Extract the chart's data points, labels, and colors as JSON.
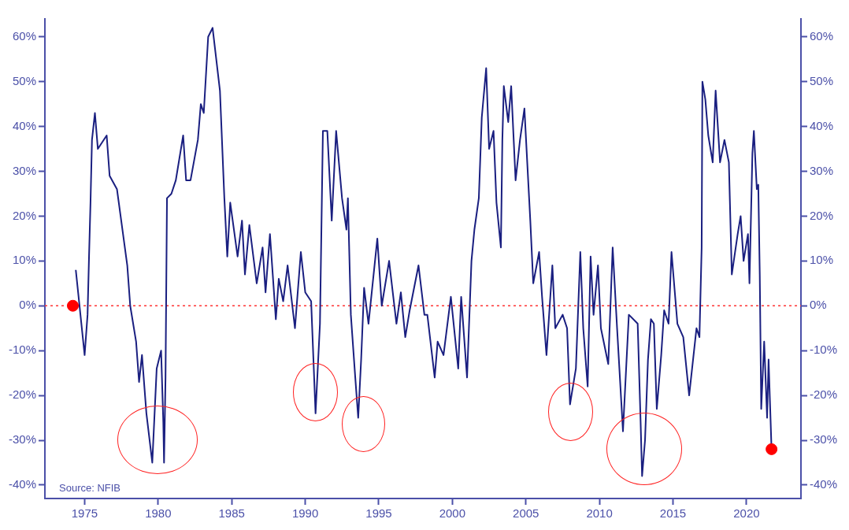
{
  "chart_data": {
    "type": "line",
    "xlim": [
      1972.3,
      2023.7
    ],
    "xticks": [
      1975,
      1980,
      1985,
      1990,
      1995,
      2000,
      2005,
      2010,
      2015,
      2020
    ],
    "ylim": [
      -43,
      64
    ],
    "yticks": [
      {
        "value": -40,
        "label": "-40%"
      },
      {
        "value": -30,
        "label": "-30%"
      },
      {
        "value": -20,
        "label": "-20%"
      },
      {
        "value": -10,
        "label": "-10%"
      },
      {
        "value": 0,
        "label": "0%"
      },
      {
        "value": 10,
        "label": "10%"
      },
      {
        "value": 20,
        "label": "20%"
      },
      {
        "value": 30,
        "label": "30%"
      },
      {
        "value": 40,
        "label": "40%"
      },
      {
        "value": 50,
        "label": "50%"
      },
      {
        "value": 60,
        "label": "60%"
      }
    ],
    "y2lim": [
      -43,
      64
    ],
    "y2ticks": [
      {
        "value": -40,
        "label": "-40%"
      },
      {
        "value": -30,
        "label": "-30%"
      },
      {
        "value": -20,
        "label": "-20%"
      },
      {
        "value": -10,
        "label": "-10%"
      },
      {
        "value": 0,
        "label": "0%"
      },
      {
        "value": 10,
        "label": "10%"
      },
      {
        "value": 20,
        "label": "20%"
      },
      {
        "value": 30,
        "label": "30%"
      },
      {
        "value": 40,
        "label": "40%"
      },
      {
        "value": 50,
        "label": "50%"
      },
      {
        "value": 60,
        "label": "60%"
      }
    ],
    "grid": false,
    "legend": false,
    "line_style": "solid",
    "ref_lines": [
      {
        "axis": "y",
        "value": 0,
        "color": "#ff3333",
        "line_style": "dotted"
      }
    ],
    "annotations": [
      "Source: NFIB"
    ],
    "series": [
      {
        "type": "line",
        "color": "#1a1f80",
        "x": [
          1974.4,
          1975.0,
          1975.2,
          1975.3,
          1975.4,
          1975.5,
          1975.7,
          1975.9,
          1976.5,
          1976.7,
          1977.2,
          1977.9,
          1978.1,
          1978.5,
          1978.7,
          1978.9,
          1979.2,
          1979.6,
          1979.9,
          1980.2,
          1980.35,
          1980.4,
          1980.5,
          1980.6,
          1980.9,
          1981.2,
          1981.7,
          1981.9,
          1982.2,
          1982.7,
          1982.9,
          1983.1,
          1983.4,
          1983.7,
          1984.2,
          1984.5,
          1984.7,
          1984.9,
          1985.4,
          1985.7,
          1985.9,
          1986.2,
          1986.7,
          1987.1,
          1987.3,
          1987.6,
          1988.0,
          1988.2,
          1988.5,
          1988.8,
          1989.3,
          1989.7,
          1990.0,
          1990.4,
          1990.7,
          1991.0,
          1991.2,
          1991.5,
          1991.8,
          1992.1,
          1992.5,
          1992.8,
          1992.9,
          1993.1,
          1993.4,
          1993.6,
          1993.8,
          1994.0,
          1994.3,
          1994.9,
          1995.2,
          1995.7,
          1996.2,
          1996.5,
          1996.8,
          1997.1,
          1997.7,
          1998.1,
          1998.3,
          1998.8,
          1999.0,
          1999.4,
          1999.9,
          2000.4,
          2000.6,
          2001.0,
          2001.3,
          2001.5,
          2001.8,
          2002.0,
          2002.3,
          2002.5,
          2002.8,
          2003.0,
          2003.3,
          2003.4,
          2003.5,
          2003.8,
          2004.0,
          2004.3,
          2004.6,
          2004.9,
          2005.3,
          2005.5,
          2005.9,
          2006.1,
          2006.4,
          2006.8,
          2007.0,
          2007.5,
          2007.8,
          2008.0,
          2008.4,
          2008.7,
          2008.9,
          2009.2,
          2009.4,
          2009.6,
          2009.9,
          2010.1,
          2010.6,
          2010.9,
          2011.2,
          2011.6,
          2012.0,
          2012.6,
          2012.8,
          2012.9,
          2013.1,
          2013.3,
          2013.5,
          2013.7,
          2013.9,
          2014.2,
          2014.4,
          2014.7,
          2014.9,
          2015.3,
          2015.7,
          2016.1,
          2016.6,
          2016.8,
          2016.95,
          2017.0,
          2017.2,
          2017.4,
          2017.7,
          2017.9,
          2018.2,
          2018.5,
          2018.8,
          2019.0,
          2019.4,
          2019.6,
          2019.8,
          2020.1,
          2020.2,
          2020.4,
          2020.5,
          2020.7,
          2020.8,
          2020.9,
          2021.0,
          2021.2,
          2021.4,
          2021.5,
          2021.7
        ],
        "values": [
          8,
          -11,
          -2,
          11,
          23,
          37,
          43,
          35,
          38,
          29,
          26,
          9,
          0,
          -8,
          -17,
          -11,
          -24,
          -35,
          -14,
          -10,
          -26,
          -35,
          -16,
          24,
          25,
          28,
          38,
          28,
          28,
          37,
          45,
          43,
          60,
          62,
          48,
          24,
          11,
          23,
          11,
          19,
          7,
          18,
          5,
          13,
          3,
          16,
          -3,
          6,
          1,
          9,
          -5,
          12,
          3,
          1,
          -24,
          -4,
          39,
          39,
          19,
          39,
          24,
          17,
          24,
          -2,
          -16,
          -25,
          -12,
          4,
          -4,
          15,
          0,
          10,
          -4,
          3,
          -7,
          -1,
          9,
          -2,
          -2,
          -16,
          -8,
          -11,
          2,
          -14,
          2,
          -16,
          10,
          17,
          24,
          42,
          53,
          35,
          39,
          23,
          13,
          37,
          49,
          41,
          49,
          28,
          37,
          44,
          19,
          5,
          12,
          2,
          -11,
          9,
          -5,
          -2,
          -5,
          -22,
          -14,
          12,
          -5,
          -18,
          11,
          -2,
          9,
          -5,
          -13,
          13,
          -5,
          -28,
          -2,
          -4,
          -26,
          -38,
          -30,
          -12,
          -3,
          -4,
          -23,
          -11,
          -1,
          -4,
          12,
          -4,
          -7,
          -20,
          -5,
          -7,
          13,
          50,
          46,
          38,
          32,
          48,
          32,
          37,
          32,
          7,
          16,
          20,
          10,
          16,
          5,
          34,
          39,
          26,
          27,
          7,
          -23,
          -8,
          -25,
          -12,
          -32
        ]
      },
      {
        "type": "scatter",
        "color": "#ff0000",
        "marker": "circle",
        "x": [
          1974.2,
          2021.7
        ],
        "values": [
          0,
          -32
        ]
      }
    ]
  }
}
